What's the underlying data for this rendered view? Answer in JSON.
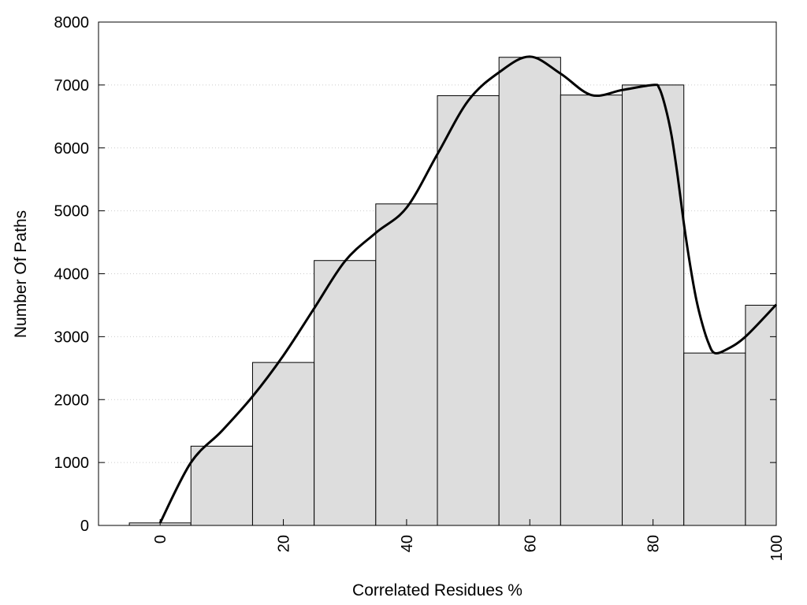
{
  "chart_data": {
    "type": "bar",
    "title": "",
    "xlabel": "Correlated Residues %",
    "ylabel": "Number Of Paths",
    "xlim": [
      -10,
      100
    ],
    "ylim": [
      0,
      8000
    ],
    "grid": true,
    "x_ticks": [
      0,
      20,
      40,
      60,
      80,
      100
    ],
    "y_ticks": [
      0,
      1000,
      2000,
      3000,
      4000,
      5000,
      6000,
      7000,
      8000
    ],
    "bin_width": 10,
    "bins": [
      {
        "x": 0,
        "value": 40
      },
      {
        "x": 10,
        "value": 1260
      },
      {
        "x": 20,
        "value": 2590
      },
      {
        "x": 30,
        "value": 4210
      },
      {
        "x": 40,
        "value": 5110
      },
      {
        "x": 50,
        "value": 6830
      },
      {
        "x": 60,
        "value": 7440
      },
      {
        "x": 70,
        "value": 6840
      },
      {
        "x": 80,
        "value": 7000
      },
      {
        "x": 90,
        "value": 2740
      },
      {
        "x": 100,
        "value": 3500
      }
    ],
    "curve": [
      [
        0,
        40
      ],
      [
        5,
        1000
      ],
      [
        10,
        1500
      ],
      [
        15,
        2050
      ],
      [
        20,
        2700
      ],
      [
        25,
        3450
      ],
      [
        30,
        4200
      ],
      [
        35,
        4650
      ],
      [
        40,
        5050
      ],
      [
        45,
        5900
      ],
      [
        50,
        6750
      ],
      [
        55,
        7200
      ],
      [
        60,
        7450
      ],
      [
        65,
        7180
      ],
      [
        70,
        6840
      ],
      [
        75,
        6920
      ],
      [
        80,
        7000
      ],
      [
        81,
        6950
      ],
      [
        82,
        6650
      ],
      [
        83,
        6200
      ],
      [
        84,
        5550
      ],
      [
        85,
        4800
      ],
      [
        86,
        4150
      ],
      [
        87,
        3600
      ],
      [
        88,
        3200
      ],
      [
        89,
        2900
      ],
      [
        90,
        2740
      ],
      [
        92,
        2800
      ],
      [
        95,
        3000
      ],
      [
        100,
        3510
      ]
    ],
    "colors": {
      "bar_fill": "#dddddd",
      "bar_stroke": "#000000",
      "curve": "#000000",
      "grid": "#cccccc"
    }
  }
}
